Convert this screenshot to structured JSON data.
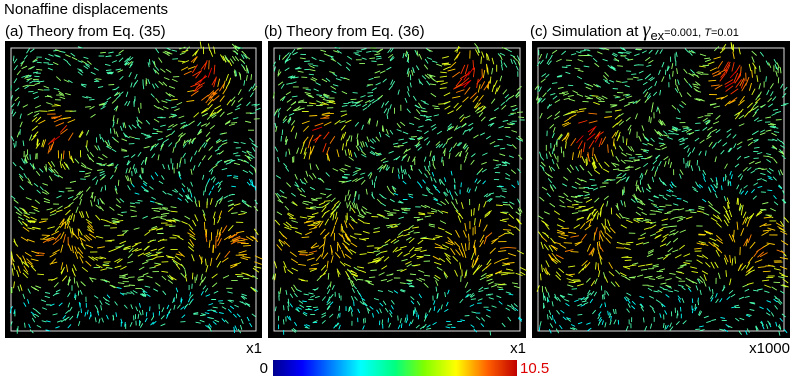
{
  "title": "Nonaffine displacements",
  "panels": [
    {
      "label": "(a)  Theory from Eq. (35)",
      "scale": "x1"
    },
    {
      "label": "(b) Theory from Eq. (36)",
      "scale": "x1"
    },
    {
      "label": [
        "(c) Simulation at ",
        "γ",
        "ex",
        "=0.001, ",
        "T",
        "=0.01"
      ],
      "scale": "x1000"
    }
  ],
  "colorbar": {
    "min": 0,
    "max": 10.5
  }
}
